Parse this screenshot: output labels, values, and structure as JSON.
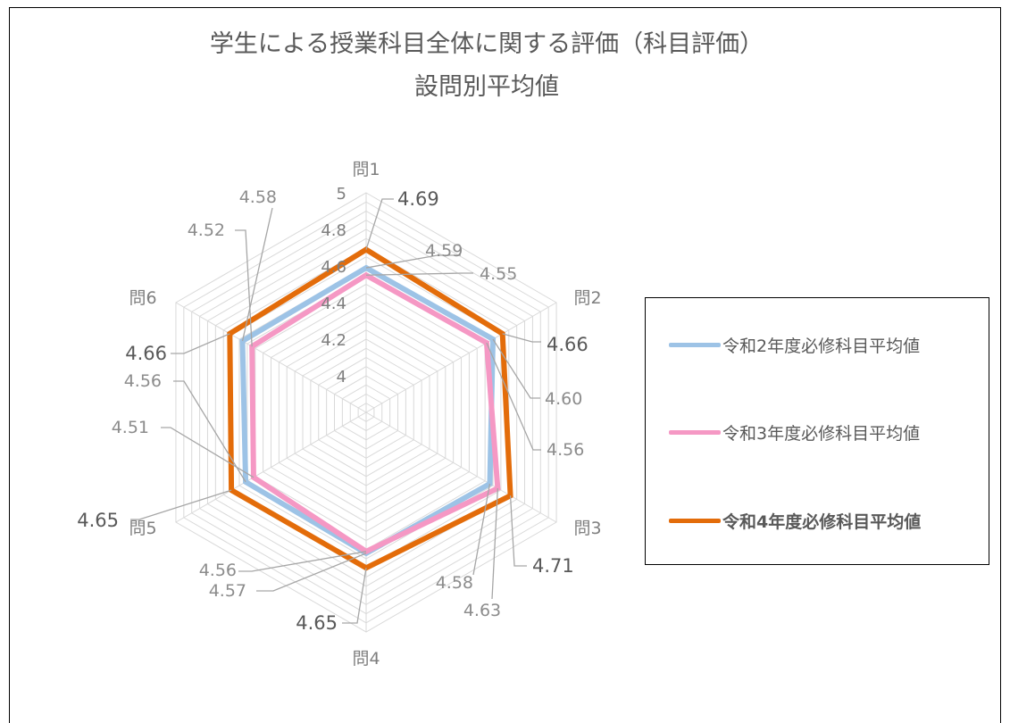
{
  "chart_data": {
    "type": "radar",
    "title": "学生による授業科目全体に関する評価（科目評価）",
    "subtitle": "設問別平均値",
    "categories": [
      "問1",
      "問2",
      "問3",
      "問4",
      "問5",
      "問6"
    ],
    "r_ticks": [
      "4",
      "4.2",
      "4.4",
      "4.6",
      "4.8",
      "5"
    ],
    "rlim": [
      3.8,
      5.0
    ],
    "legend_position": "right",
    "series": [
      {
        "name": "令和2年度必修科目平均値",
        "color": "#9dc3e6",
        "values": [
          4.59,
          4.6,
          4.58,
          4.57,
          4.56,
          4.58
        ],
        "labels": [
          "4.59",
          "4.60",
          "4.58",
          "4.57",
          "4.56",
          "4.58"
        ]
      },
      {
        "name": "令和3年度必修科目平均値",
        "color": "#f598c4",
        "values": [
          4.55,
          4.56,
          4.63,
          4.56,
          4.51,
          4.52
        ],
        "labels": [
          "4.55",
          "4.56",
          "4.63",
          "4.56",
          "4.51",
          "4.52"
        ]
      },
      {
        "name": "令和4年度必修科目平均値",
        "color": "#e36c0a",
        "values": [
          4.69,
          4.66,
          4.71,
          4.65,
          4.65,
          4.66
        ],
        "labels": [
          "4.69",
          "4.66",
          "4.71",
          "4.65",
          "4.65",
          "4.66"
        ]
      }
    ]
  }
}
